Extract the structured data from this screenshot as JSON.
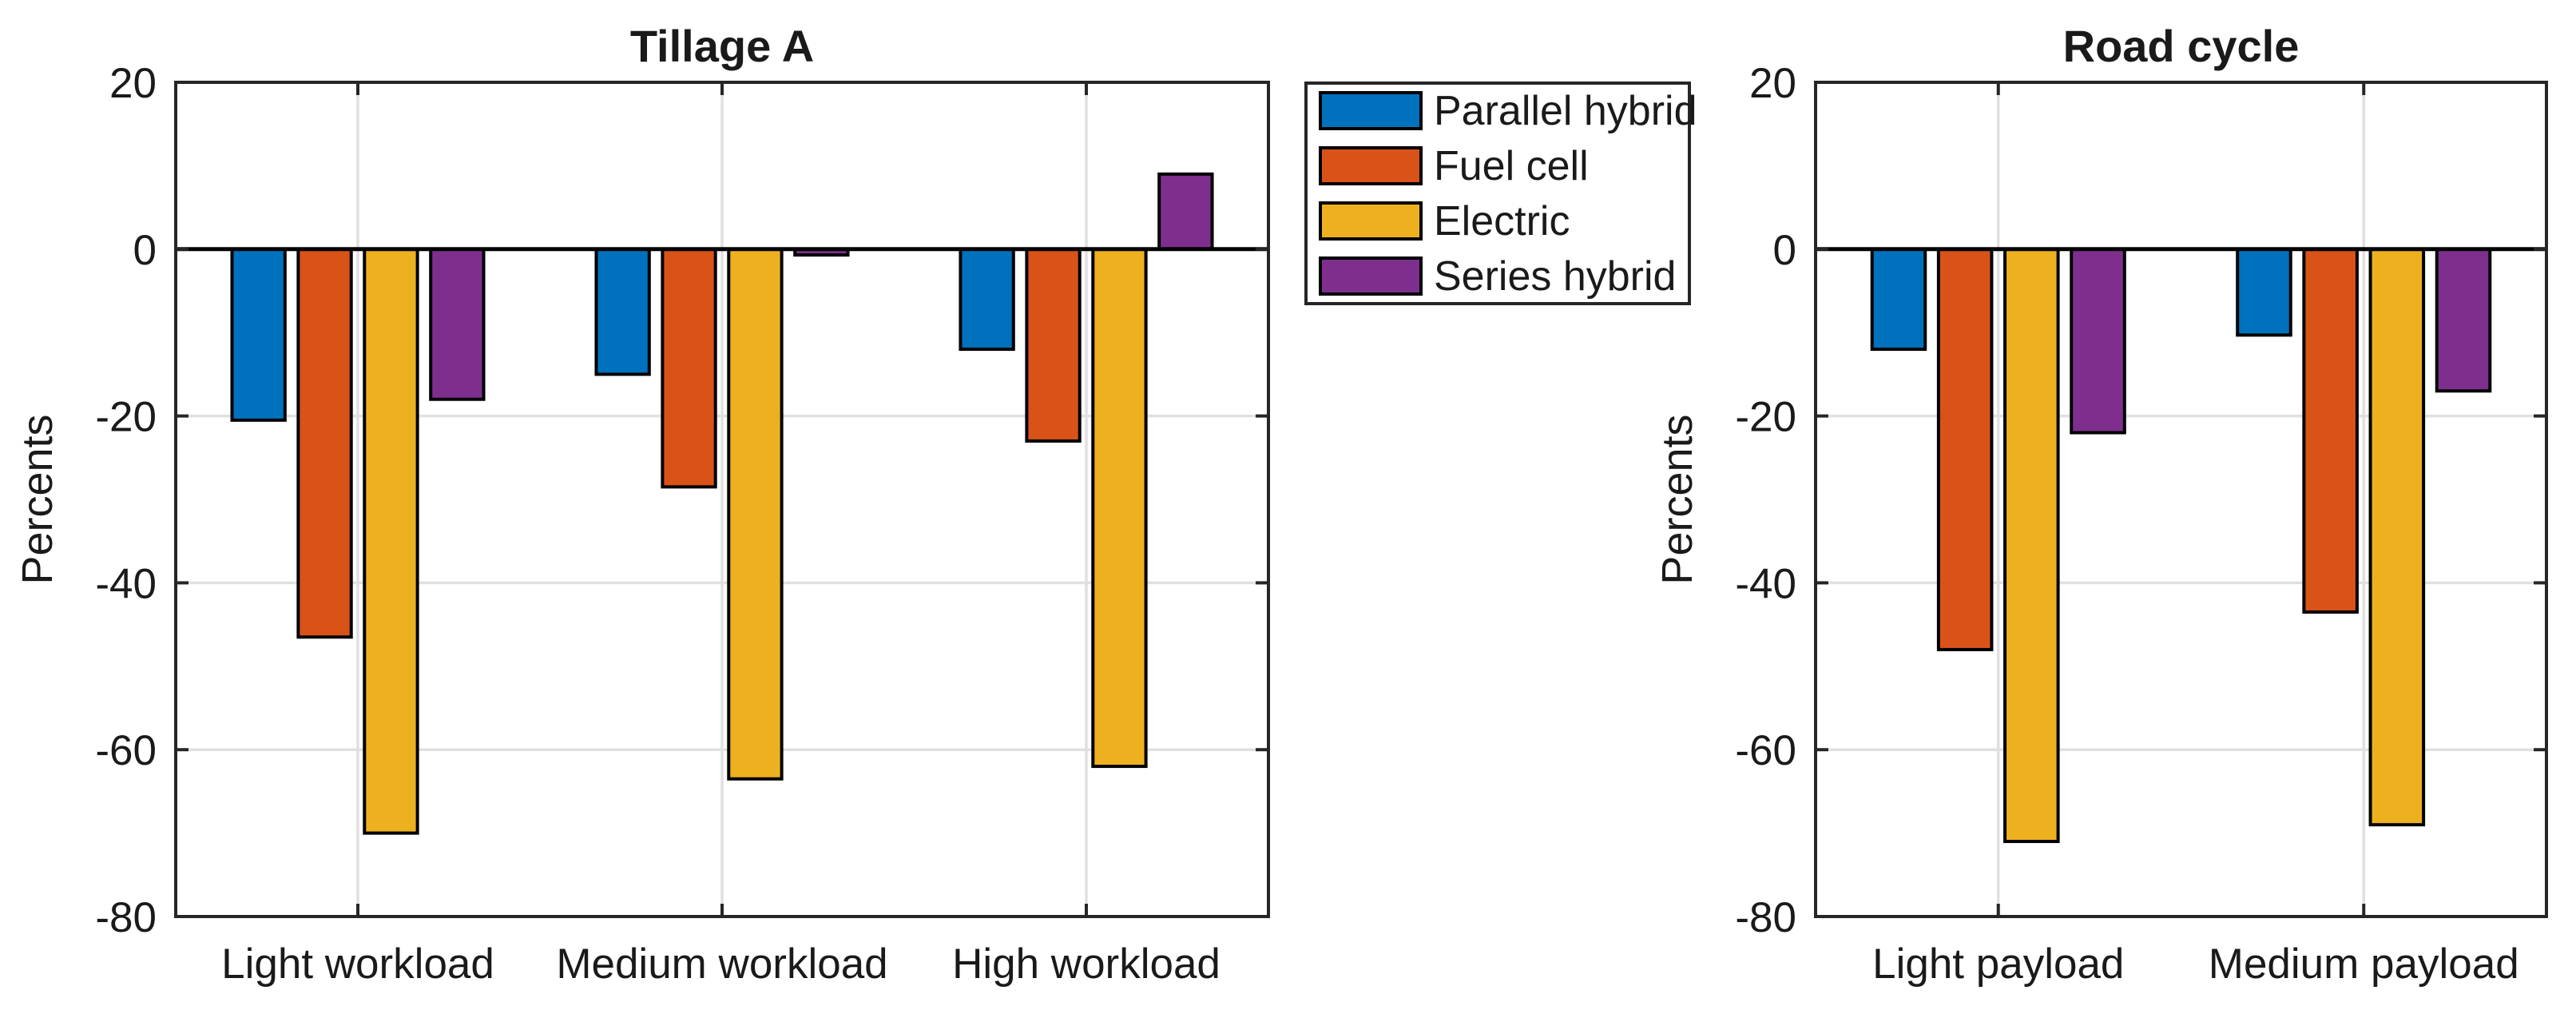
{
  "figure": {
    "background": "#ffffff",
    "axis_color": "#262626",
    "grid_color": "#e0e0e0",
    "bar_edge_color": "#000000",
    "zero_line_color": "#000000",
    "text_color": "#1a1a1a"
  },
  "legend": {
    "items": [
      {
        "label": "Parallel hybrid",
        "color": "#0072BD"
      },
      {
        "label": "Fuel cell",
        "color": "#D95319"
      },
      {
        "label": "Electric",
        "color": "#EDB120"
      },
      {
        "label": "Series hybrid",
        "color": "#7E2F8E"
      }
    ]
  },
  "chart_data": [
    {
      "type": "bar",
      "title": "Tillage A",
      "xlabel": "",
      "ylabel": "Percents",
      "categories": [
        "Light workload",
        "Medium workload",
        "High workload"
      ],
      "series": [
        {
          "name": "Parallel hybrid",
          "color": "#0072BD",
          "values": [
            -20.5,
            -15,
            -12
          ]
        },
        {
          "name": "Fuel cell",
          "color": "#D95319",
          "values": [
            -46.5,
            -28.5,
            -23
          ]
        },
        {
          "name": "Electric",
          "color": "#EDB120",
          "values": [
            -70,
            -63.5,
            -62
          ]
        },
        {
          "name": "Series hybrid",
          "color": "#7E2F8E",
          "values": [
            -18,
            -0.7,
            9
          ]
        }
      ],
      "ylim": [
        -80,
        20
      ],
      "yticks": [
        20,
        0,
        -20,
        -40,
        -60,
        -80
      ],
      "grid": true,
      "legend_position": "outside-right-top"
    },
    {
      "type": "bar",
      "title": "Road cycle",
      "xlabel": "",
      "ylabel": "Percents",
      "categories": [
        "Light payload",
        "Medium payload"
      ],
      "series": [
        {
          "name": "Parallel hybrid",
          "color": "#0072BD",
          "values": [
            -12,
            -10.3
          ]
        },
        {
          "name": "Fuel cell",
          "color": "#D95319",
          "values": [
            -48,
            -43.5
          ]
        },
        {
          "name": "Electric",
          "color": "#EDB120",
          "values": [
            -71,
            -69
          ]
        },
        {
          "name": "Series hybrid",
          "color": "#7E2F8E",
          "values": [
            -22,
            -17
          ]
        }
      ],
      "ylim": [
        -80,
        20
      ],
      "yticks": [
        20,
        0,
        -20,
        -40,
        -60,
        -80
      ],
      "grid": true,
      "legend_position": "none"
    }
  ]
}
